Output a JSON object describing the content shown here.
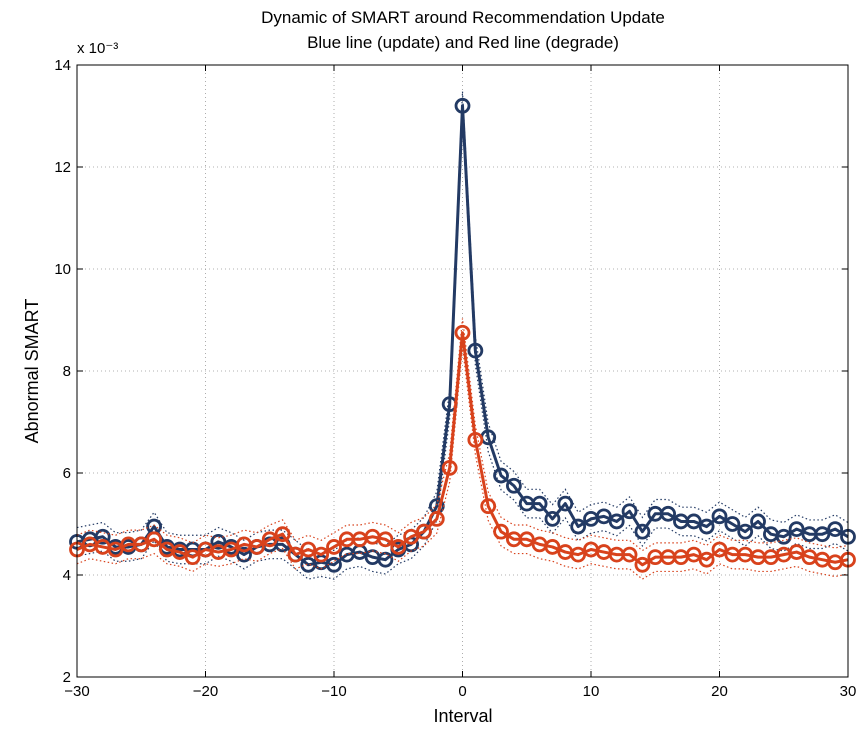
{
  "chart_data": {
    "type": "line",
    "title": "Dynamic of SMART around Recommendation Update",
    "subtitle": "Blue line (update) and Red line (degrade)",
    "xlabel": "Interval",
    "ylabel": "Abnormal SMART",
    "y_exponent": "x 10⁻³",
    "xlim": [
      -30,
      30
    ],
    "ylim": [
      2,
      14
    ],
    "xticks": [
      -30,
      -20,
      -10,
      0,
      10,
      20,
      30
    ],
    "xtick_labels": [
      "−30",
      "−20",
      "−10",
      "0",
      "10",
      "20",
      "30"
    ],
    "yticks": [
      2,
      4,
      6,
      8,
      10,
      12,
      14
    ],
    "ytick_labels": [
      "2",
      "4",
      "6",
      "8",
      "10",
      "12",
      "14"
    ],
    "grid": true,
    "x": [
      -30,
      -29,
      -28,
      -27,
      -26,
      -25,
      -24,
      -23,
      -22,
      -21,
      -20,
      -19,
      -18,
      -17,
      -16,
      -15,
      -14,
      -13,
      -12,
      -11,
      -10,
      -9,
      -8,
      -7,
      -6,
      -5,
      -4,
      -3,
      -2,
      -1,
      0,
      1,
      2,
      3,
      4,
      5,
      6,
      7,
      8,
      9,
      10,
      11,
      12,
      13,
      14,
      15,
      16,
      17,
      18,
      19,
      20,
      21,
      22,
      23,
      24,
      25,
      26,
      27,
      28,
      29,
      30
    ],
    "series": [
      {
        "color": "#233a64",
        "values": [
          4.65,
          4.7,
          4.75,
          4.55,
          4.55,
          4.6,
          4.95,
          4.55,
          4.5,
          4.5,
          4.5,
          4.65,
          4.55,
          4.4,
          4.55,
          4.6,
          4.6,
          4.4,
          4.2,
          4.25,
          4.2,
          4.4,
          4.45,
          4.35,
          4.3,
          4.5,
          4.6,
          4.85,
          5.35,
          7.35,
          13.2,
          8.4,
          6.7,
          5.95,
          5.75,
          5.4,
          5.4,
          5.1,
          5.4,
          4.95,
          5.1,
          5.15,
          5.05,
          5.25,
          4.85,
          5.2,
          5.2,
          5.05,
          5.05,
          4.95,
          5.15,
          5.0,
          4.85,
          5.05,
          4.8,
          4.75,
          4.9,
          4.8,
          4.8,
          4.9,
          4.75
        ]
      },
      {
        "color": "#d8421c",
        "values": [
          4.5,
          4.6,
          4.55,
          4.5,
          4.6,
          4.6,
          4.7,
          4.5,
          4.45,
          4.35,
          4.5,
          4.45,
          4.5,
          4.6,
          4.55,
          4.7,
          4.8,
          4.4,
          4.5,
          4.4,
          4.55,
          4.7,
          4.7,
          4.75,
          4.7,
          4.55,
          4.75,
          4.85,
          5.1,
          6.1,
          8.75,
          6.65,
          5.35,
          4.85,
          4.7,
          4.7,
          4.6,
          4.55,
          4.45,
          4.4,
          4.5,
          4.45,
          4.4,
          4.4,
          4.2,
          4.35,
          4.35,
          4.35,
          4.4,
          4.3,
          4.5,
          4.4,
          4.4,
          4.35,
          4.35,
          4.4,
          4.45,
          4.35,
          4.3,
          4.25,
          4.3
        ]
      }
    ]
  }
}
